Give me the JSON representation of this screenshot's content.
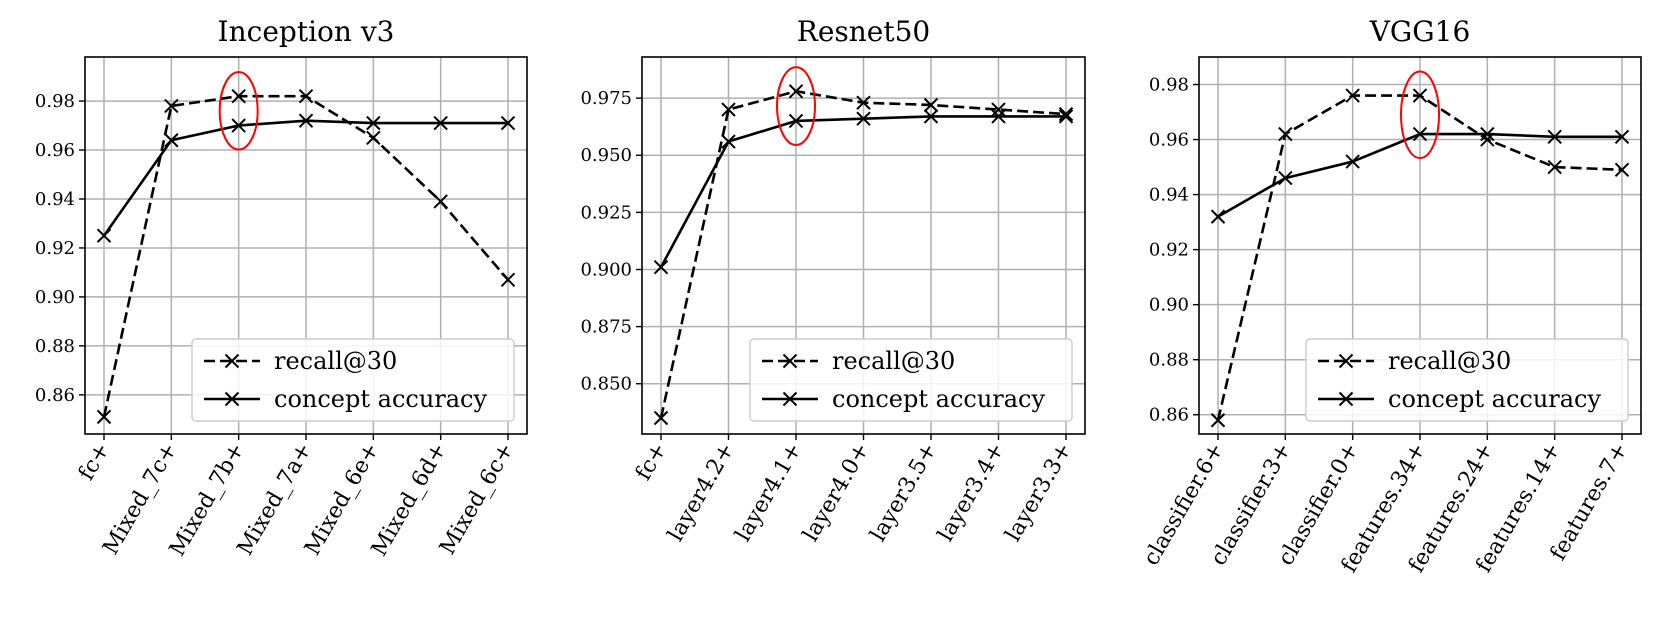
{
  "chart_data": [
    {
      "type": "line",
      "title": "Inception v3",
      "xlabel": "",
      "ylabel": "",
      "categories": [
        "fc+",
        "Mixed_7c+",
        "Mixed_7b+",
        "Mixed_7a+",
        "Mixed_6e+",
        "Mixed_6d+",
        "Mixed_6c+"
      ],
      "series": [
        {
          "name": "recall@30",
          "style": "dashed",
          "values": [
            0.851,
            0.978,
            0.982,
            0.982,
            0.965,
            0.939,
            0.907
          ]
        },
        {
          "name": "concept accuracy",
          "style": "solid",
          "values": [
            0.925,
            0.964,
            0.97,
            0.972,
            0.971,
            0.971,
            0.971
          ]
        }
      ],
      "ylim": [
        0.844,
        0.998
      ],
      "yticks": [
        "0.86",
        "0.88",
        "0.90",
        "0.92",
        "0.94",
        "0.96",
        "0.98"
      ],
      "highlight_index": 2,
      "grid": true,
      "legend": "lower-right"
    },
    {
      "type": "line",
      "title": "Resnet50",
      "xlabel": "",
      "ylabel": "",
      "categories": [
        "fc+",
        "layer4.2+",
        "layer4.1+",
        "layer4.0+",
        "layer3.5+",
        "layer3.4+",
        "layer3.3+"
      ],
      "series": [
        {
          "name": "recall@30",
          "style": "dashed",
          "values": [
            0.835,
            0.97,
            0.978,
            0.973,
            0.972,
            0.97,
            0.968
          ]
        },
        {
          "name": "concept accuracy",
          "style": "solid",
          "values": [
            0.901,
            0.956,
            0.965,
            0.966,
            0.967,
            0.967,
            0.967
          ]
        }
      ],
      "ylim": [
        0.828,
        0.993
      ],
      "yticks": [
        "0.850",
        "0.875",
        "0.900",
        "0.925",
        "0.950",
        "0.975"
      ],
      "highlight_index": 2,
      "grid": true,
      "legend": "lower-right"
    },
    {
      "type": "line",
      "title": "VGG16",
      "xlabel": "",
      "ylabel": "",
      "categories": [
        "classifier.6+",
        "classifier.3+",
        "classifier.0+",
        "features.34+",
        "features.24+",
        "features.14+",
        "features.7+"
      ],
      "series": [
        {
          "name": "recall@30",
          "style": "dashed",
          "values": [
            0.858,
            0.962,
            0.976,
            0.976,
            0.96,
            0.95,
            0.949
          ]
        },
        {
          "name": "concept accuracy",
          "style": "solid",
          "values": [
            0.932,
            0.946,
            0.952,
            0.962,
            0.962,
            0.961,
            0.961
          ]
        }
      ],
      "ylim": [
        0.853,
        0.99
      ],
      "yticks": [
        "0.86",
        "0.88",
        "0.90",
        "0.92",
        "0.94",
        "0.96",
        "0.98"
      ],
      "highlight_index": 3,
      "grid": true,
      "legend": "lower-right"
    }
  ],
  "colors": {
    "line": "#000000",
    "grid": "#b0b0b0",
    "highlight": "#ff0000",
    "legend_border": "#cccccc"
  }
}
